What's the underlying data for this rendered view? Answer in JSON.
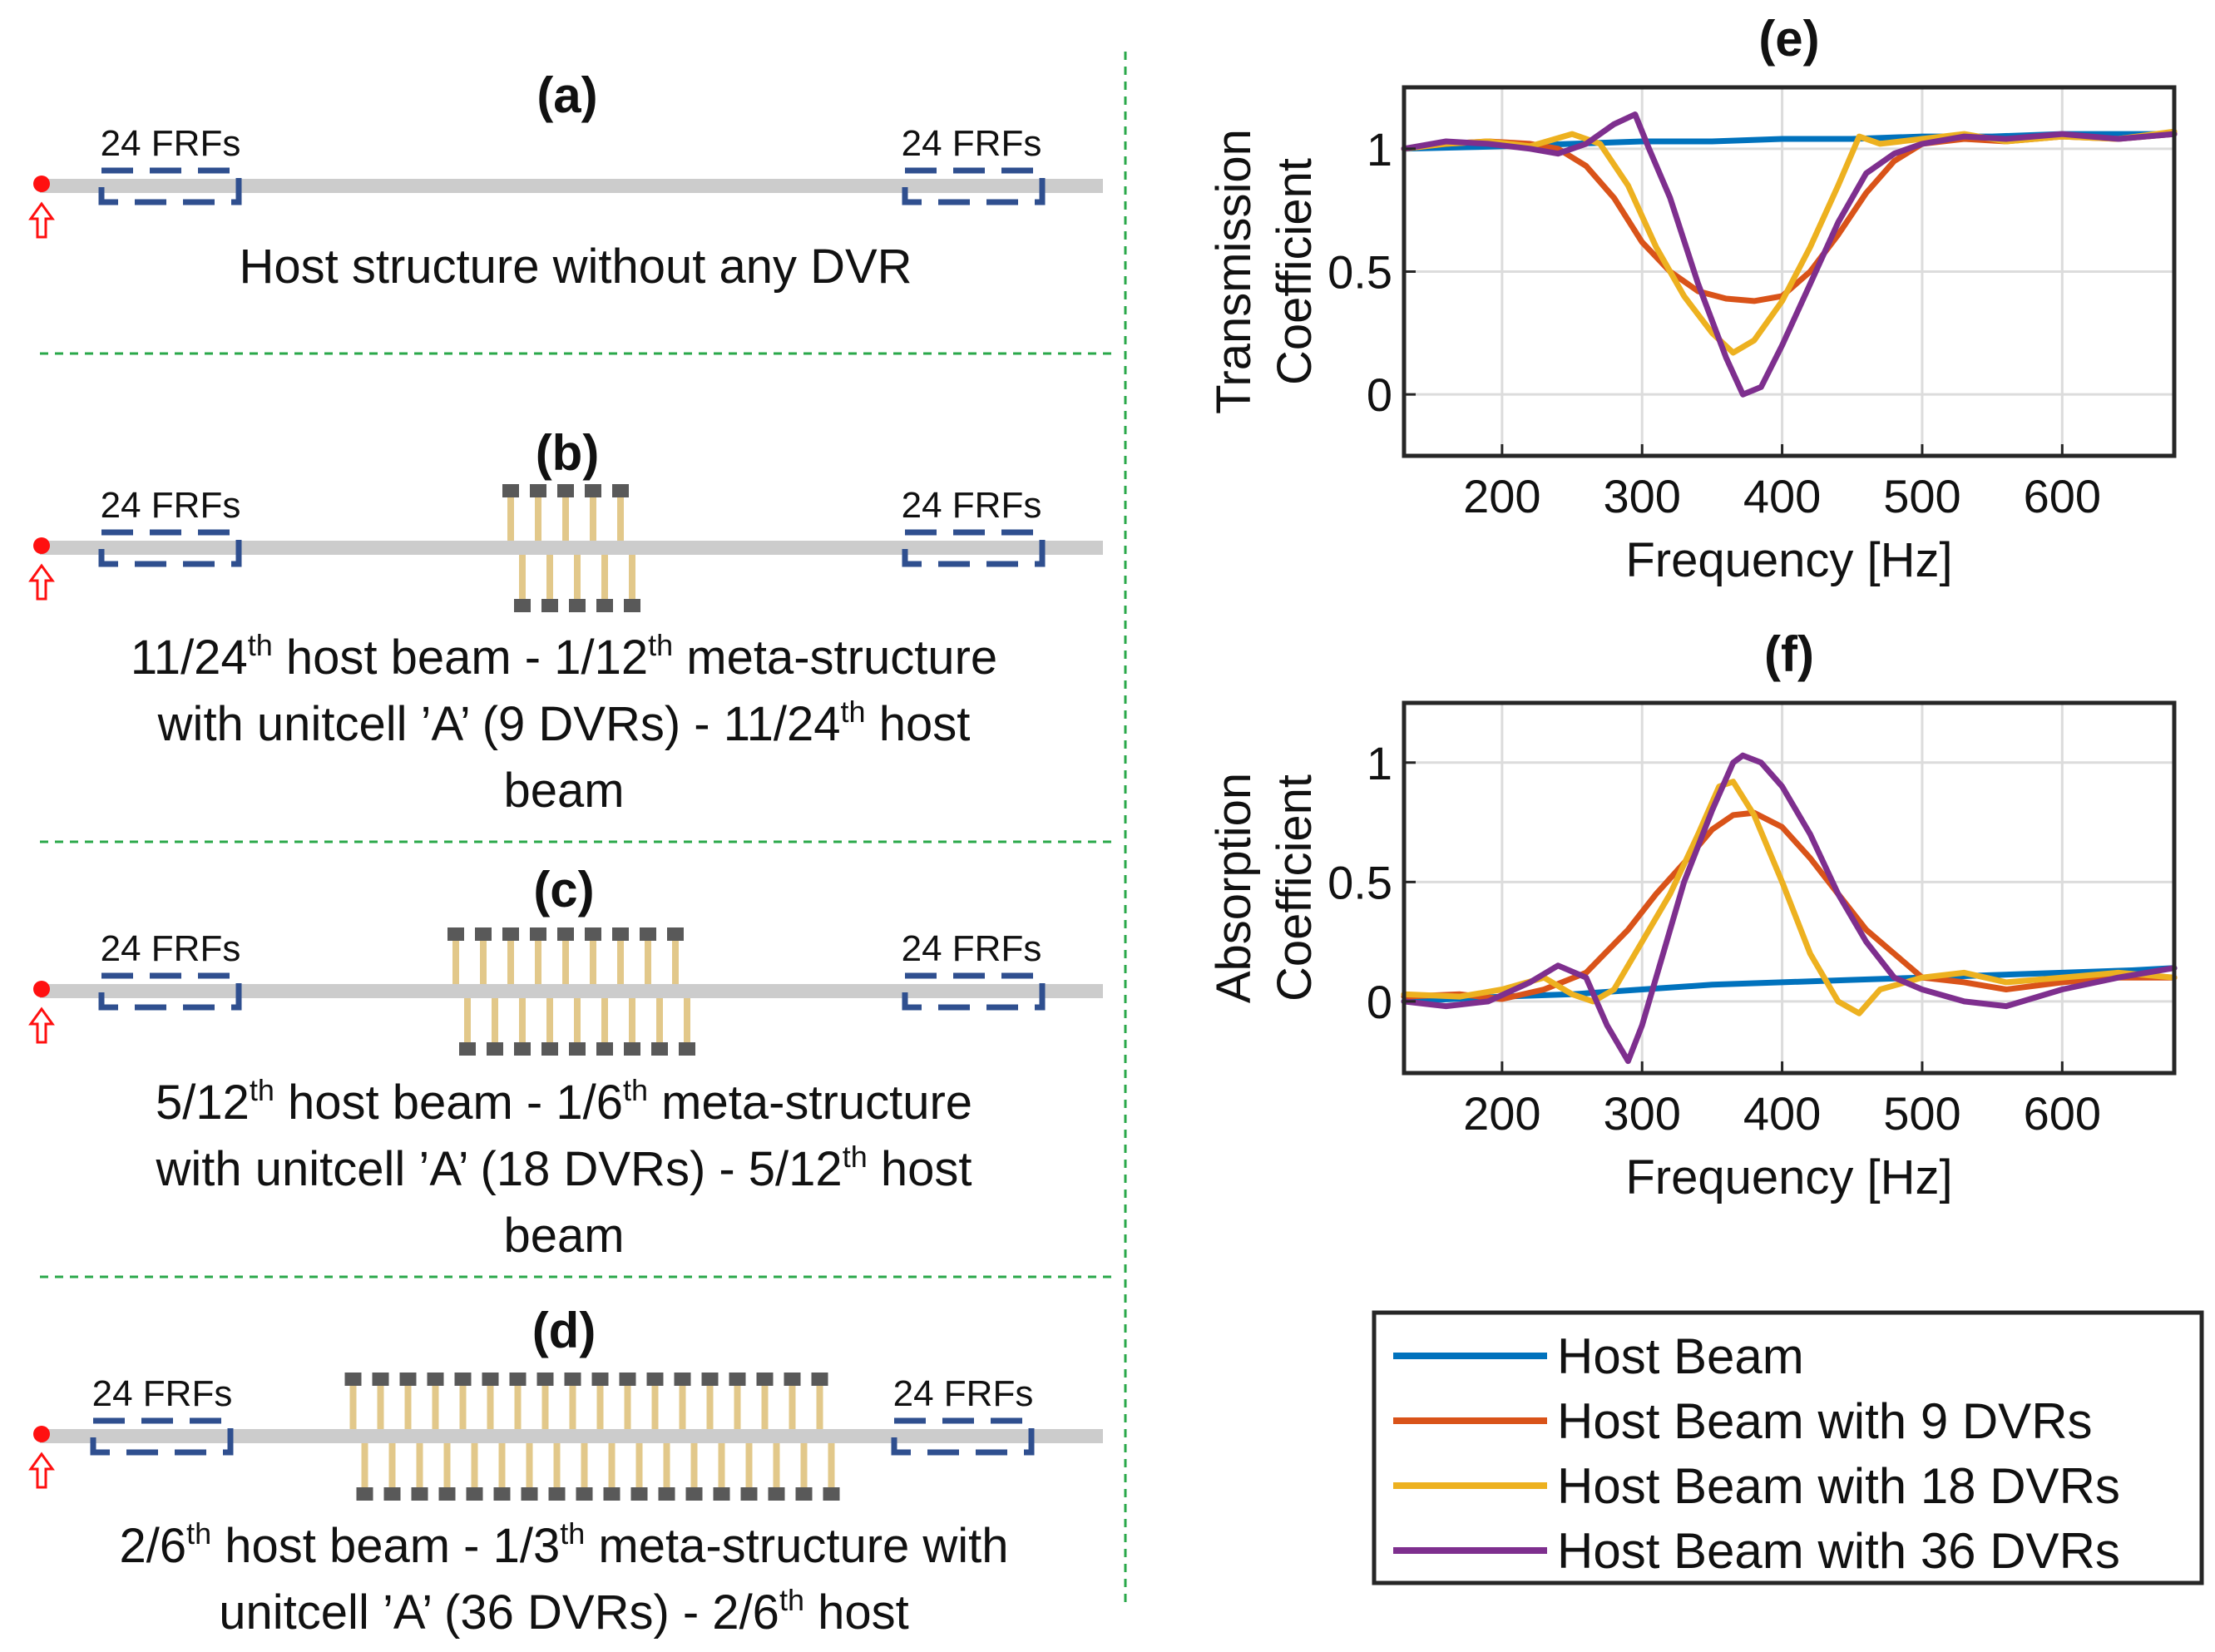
{
  "panels": {
    "a": {
      "label": "(a)",
      "frf_left": "24 FRFs",
      "frf_right": "24 FRFs",
      "caption": [
        "Host structure without any DVR"
      ],
      "dvr_count": 0
    },
    "b": {
      "label": "(b)",
      "frf_left": "24 FRFs",
      "frf_right": "24 FRFs",
      "cap1a": "11/24",
      "cap1s": "th",
      "cap1b": " host beam - 1/12",
      "cap1t": "th",
      "cap1c": " meta-structure",
      "cap2a": "with unitcell ’A’ (9 DVRs) - 11/24",
      "cap2s": "th",
      "cap2b": " host",
      "cap3": "beam",
      "dvr_count": 9
    },
    "c": {
      "label": "(c)",
      "frf_left": "24 FRFs",
      "frf_right": "24 FRFs",
      "cap1a": "5/12",
      "cap1s": "th",
      "cap1b": " host beam - 1/6",
      "cap1t": "th",
      "cap1c": " meta-structure",
      "cap2a": "with unitcell ’A’ (18 DVRs) - 5/12",
      "cap2s": "th",
      "cap2b": " host",
      "cap3": "beam",
      "dvr_count": 18
    },
    "d": {
      "label": "(d)",
      "frf_left": "24 FRFs",
      "frf_right": "24 FRFs",
      "cap1a": "2/6",
      "cap1s": "th",
      "cap1b": " host beam - 1/3",
      "cap1t": "th",
      "cap1c": " meta-structure with",
      "cap2a": "unitcell ’A’ (36 DVRs) - 2/6",
      "cap2s": "th",
      "cap2b": " host",
      "dvr_count": 36
    }
  },
  "chart_data": [
    {
      "type": "line",
      "panel_label": "(e)",
      "xlabel": "Frequency [Hz]",
      "ylabel": [
        "Transmission",
        "Coefficient"
      ],
      "xlim": [
        130,
        680
      ],
      "ylim": [
        -0.25,
        1.25
      ],
      "xticks": [
        200,
        300,
        400,
        500,
        600
      ],
      "yticks": [
        0,
        0.5,
        1
      ],
      "ytick_labels": [
        "0",
        "0.5",
        "1"
      ],
      "grid": true,
      "series": [
        {
          "name": "Host Beam",
          "color": "#0072BD",
          "x": [
            130,
            200,
            250,
            300,
            350,
            400,
            450,
            500,
            550,
            600,
            650,
            680
          ],
          "y": [
            1.0,
            1.01,
            1.02,
            1.03,
            1.03,
            1.04,
            1.04,
            1.05,
            1.05,
            1.06,
            1.06,
            1.06
          ]
        },
        {
          "name": "Host Beam with 9 DVRs",
          "color": "#D95319",
          "x": [
            130,
            160,
            190,
            220,
            240,
            260,
            280,
            300,
            320,
            340,
            360,
            380,
            400,
            420,
            440,
            460,
            480,
            500,
            530,
            560,
            600,
            640,
            680
          ],
          "y": [
            1.0,
            1.02,
            1.03,
            1.02,
            1.0,
            0.93,
            0.8,
            0.62,
            0.5,
            0.42,
            0.39,
            0.38,
            0.4,
            0.5,
            0.65,
            0.82,
            0.95,
            1.02,
            1.04,
            1.03,
            1.05,
            1.04,
            1.06
          ]
        },
        {
          "name": "Host Beam with 18 DVRs",
          "color": "#EDB120",
          "x": [
            130,
            160,
            190,
            220,
            250,
            270,
            290,
            310,
            330,
            350,
            365,
            380,
            400,
            420,
            440,
            455,
            470,
            500,
            530,
            560,
            600,
            640,
            680
          ],
          "y": [
            1.0,
            1.02,
            1.03,
            1.01,
            1.06,
            1.02,
            0.85,
            0.6,
            0.4,
            0.25,
            0.17,
            0.22,
            0.38,
            0.6,
            0.85,
            1.05,
            1.02,
            1.04,
            1.06,
            1.03,
            1.05,
            1.04,
            1.07
          ]
        },
        {
          "name": "Host Beam with 36 DVRs",
          "color": "#7E2F8E",
          "x": [
            130,
            160,
            190,
            220,
            240,
            260,
            280,
            295,
            305,
            320,
            340,
            360,
            372,
            385,
            400,
            420,
            440,
            460,
            480,
            500,
            530,
            560,
            600,
            640,
            680
          ],
          "y": [
            1.0,
            1.03,
            1.02,
            1.0,
            0.98,
            1.02,
            1.1,
            1.14,
            1.0,
            0.8,
            0.45,
            0.15,
            0.0,
            0.03,
            0.2,
            0.45,
            0.7,
            0.9,
            0.98,
            1.02,
            1.05,
            1.04,
            1.06,
            1.04,
            1.06
          ]
        }
      ]
    },
    {
      "type": "line",
      "panel_label": "(f)",
      "xlabel": "Frequency [Hz]",
      "ylabel": [
        "Absorption",
        "Coefficient"
      ],
      "xlim": [
        130,
        680
      ],
      "ylim": [
        -0.3,
        1.25
      ],
      "xticks": [
        200,
        300,
        400,
        500,
        600
      ],
      "yticks": [
        0,
        0.5,
        1
      ],
      "ytick_labels": [
        "0",
        "0.5",
        "1"
      ],
      "grid": true,
      "series": [
        {
          "name": "Host Beam",
          "color": "#0072BD",
          "x": [
            130,
            200,
            250,
            300,
            350,
            400,
            450,
            500,
            550,
            600,
            650,
            680
          ],
          "y": [
            0.0,
            0.02,
            0.03,
            0.05,
            0.07,
            0.08,
            0.09,
            0.1,
            0.11,
            0.12,
            0.13,
            0.14
          ]
        },
        {
          "name": "Host Beam with 9 DVRs",
          "color": "#D95319",
          "x": [
            130,
            170,
            200,
            230,
            260,
            290,
            310,
            330,
            350,
            365,
            380,
            400,
            420,
            440,
            460,
            480,
            500,
            530,
            560,
            600,
            640,
            680
          ],
          "y": [
            0.02,
            0.03,
            0.01,
            0.05,
            0.12,
            0.3,
            0.45,
            0.58,
            0.72,
            0.78,
            0.79,
            0.73,
            0.6,
            0.45,
            0.3,
            0.2,
            0.1,
            0.08,
            0.05,
            0.08,
            0.1,
            0.1
          ]
        },
        {
          "name": "Host Beam with 18 DVRs",
          "color": "#EDB120",
          "x": [
            130,
            170,
            200,
            230,
            250,
            265,
            280,
            300,
            320,
            340,
            355,
            365,
            380,
            400,
            420,
            440,
            455,
            470,
            500,
            530,
            560,
            600,
            640,
            680
          ],
          "y": [
            0.03,
            0.02,
            0.05,
            0.1,
            0.03,
            0.0,
            0.05,
            0.25,
            0.45,
            0.7,
            0.9,
            0.92,
            0.78,
            0.5,
            0.2,
            0.0,
            -0.05,
            0.05,
            0.1,
            0.12,
            0.08,
            0.1,
            0.12,
            0.1
          ]
        },
        {
          "name": "Host Beam with 36 DVRs",
          "color": "#7E2F8E",
          "x": [
            130,
            160,
            190,
            220,
            240,
            260,
            275,
            290,
            300,
            315,
            330,
            350,
            365,
            372,
            385,
            400,
            420,
            440,
            460,
            480,
            500,
            530,
            560,
            600,
            640,
            680
          ],
          "y": [
            0.0,
            -0.02,
            0.0,
            0.08,
            0.15,
            0.1,
            -0.1,
            -0.25,
            -0.1,
            0.2,
            0.5,
            0.8,
            1.0,
            1.03,
            1.0,
            0.9,
            0.7,
            0.45,
            0.25,
            0.1,
            0.05,
            0.0,
            -0.02,
            0.05,
            0.1,
            0.14
          ]
        }
      ]
    }
  ],
  "legend": [
    "Host Beam",
    "Host Beam with 9 DVRs",
    "Host Beam with 18 DVRs",
    "Host Beam with 36 DVRs"
  ]
}
